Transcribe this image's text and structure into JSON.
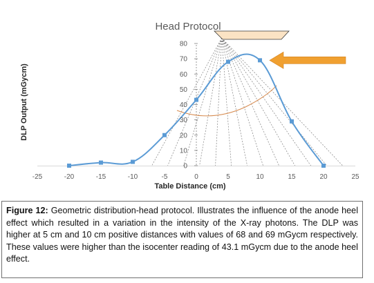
{
  "chart_data": {
    "type": "line",
    "title": "Head Protocol",
    "xlabel": "Table Distance (cm)",
    "ylabel": "DLP Output (mGycm)",
    "xlim": [
      -25,
      25
    ],
    "ylim": [
      0,
      80
    ],
    "x_ticks": [
      "-25",
      "-20",
      "-15",
      "-10",
      "-5",
      "0",
      "5",
      "10",
      "15",
      "20",
      "25"
    ],
    "y_ticks": [
      "0",
      "10",
      "20",
      "30",
      "40",
      "50",
      "60",
      "70",
      "80"
    ],
    "grid": false,
    "legend": "none",
    "series": [
      {
        "x": [
          -20,
          -15,
          -10,
          -5,
          0,
          5,
          10,
          15,
          20
        ],
        "values": [
          0,
          2,
          2.5,
          20,
          43.1,
          68,
          69,
          29,
          0
        ],
        "color": "#5b9bd5",
        "marker": "square"
      }
    ],
    "annotations": {
      "arrow_color": "#f0a030",
      "arrow_target_x": 10,
      "arrow_target_y": 69,
      "tube_fill": "#fbe3c4",
      "tube_focus_x": 4,
      "beam_line_color": "#7f7f7f",
      "heel_curve_color": "#d68a4e"
    }
  },
  "caption": {
    "label": "Figure 12:",
    "text": " Geometric distribution-head protocol. Illustrates the influence of the anode heel effect which resulted in a variation in the intensity of the X-ray photons. The DLP was higher at 5 cm and 10 cm positive distances with values of 68 and 69 mGycm respectively. These values were higher than the isocenter reading of 43.1 mGycm due to the anode heel effect."
  }
}
